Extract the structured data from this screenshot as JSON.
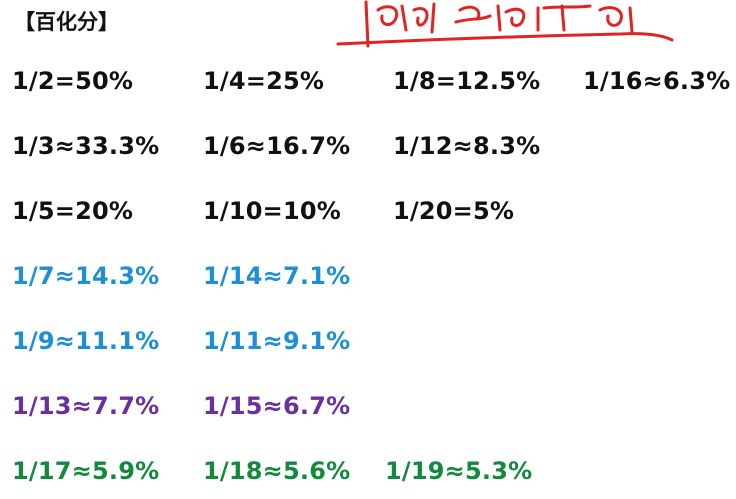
{
  "title": "【百化分】",
  "handwritten_note": "倒数记忆",
  "colors": {
    "black": "#111111",
    "blue": "#1c8fd6",
    "purple": "#6a2fa0",
    "green": "#118a3c",
    "red_ink": "#e02424"
  },
  "rows": [
    {
      "color": "black",
      "items": [
        "1/2=50%",
        "1/4=25%",
        "1/8=12.5%",
        "1/16≈6.3%"
      ]
    },
    {
      "color": "black",
      "items": [
        "1/3≈33.3%",
        "1/6≈16.7%",
        "1/12≈8.3%"
      ]
    },
    {
      "color": "black",
      "items": [
        "1/5=20%",
        "1/10=10%",
        "1/20=5%"
      ]
    },
    {
      "color": "blue",
      "items": [
        "1/7≈14.3%",
        "1/14≈7.1%"
      ]
    },
    {
      "color": "blue",
      "items": [
        "1/9≈11.1%",
        "1/11≈9.1%"
      ]
    },
    {
      "color": "purple",
      "items": [
        "1/13≈7.7%",
        "1/15≈6.7%"
      ]
    },
    {
      "color": "green",
      "items": [
        "1/17≈5.9%",
        "1/18≈5.6%",
        "1/19≈5.3%"
      ]
    }
  ]
}
